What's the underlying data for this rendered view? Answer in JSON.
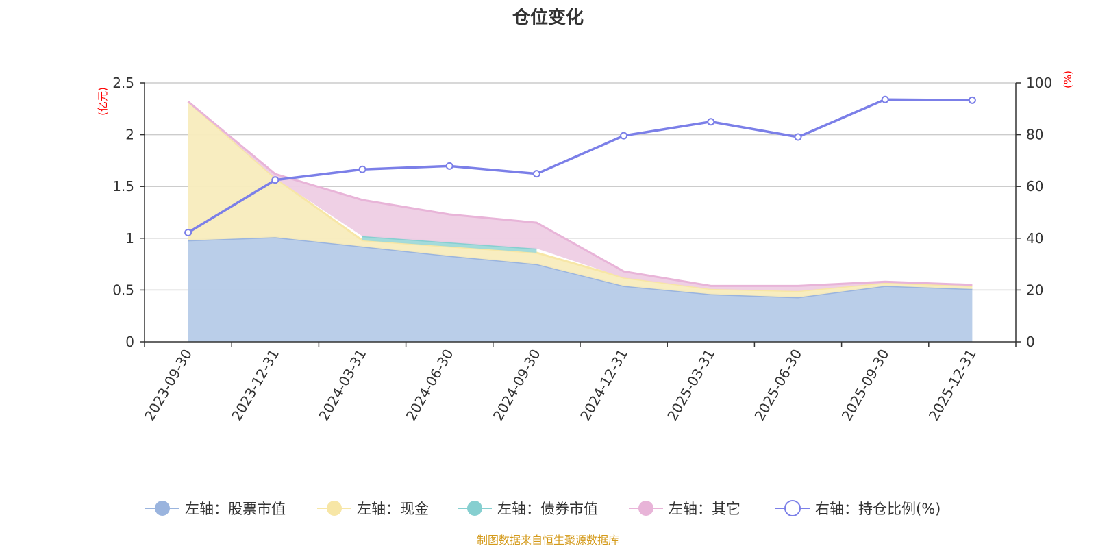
{
  "chart_data": {
    "type": "area",
    "title": "仓位变化",
    "categories": [
      "2023-09-30",
      "2023-12-31",
      "2024-03-31",
      "2024-06-30",
      "2024-09-30",
      "2024-12-31",
      "2025-03-31",
      "2025-06-30",
      "2025-09-30",
      "2025-12-31"
    ],
    "left_axis": {
      "unit": "(亿元)",
      "ylim": [
        0,
        2.5
      ],
      "ticks": [
        "0",
        "0.5",
        "1",
        "1.5",
        "2",
        "2.5"
      ],
      "tick_values": [
        0,
        0.5,
        1,
        1.5,
        2,
        2.5
      ]
    },
    "right_axis": {
      "unit": "(%)",
      "ylim": [
        0,
        100
      ],
      "ticks": [
        "0",
        "20",
        "40",
        "60",
        "80",
        "100"
      ],
      "tick_values": [
        0,
        20,
        40,
        60,
        80,
        100
      ]
    },
    "stacked_series": [
      {
        "name": "左轴：股票市值",
        "color": "#9ab4de",
        "fill": "#b6cbe8",
        "values": [
          0.98,
          1.01,
          0.92,
          0.83,
          0.75,
          0.54,
          0.46,
          0.43,
          0.54,
          0.51
        ]
      },
      {
        "name": "左轴：现金",
        "color": "#f7e6a6",
        "fill": "#f8ecbd",
        "values": [
          1.34,
          0.57,
          0.06,
          0.09,
          0.11,
          0.08,
          0.05,
          0.06,
          0.03,
          0.03
        ]
      },
      {
        "name": "左轴：债券市值",
        "color": "#86cfd0",
        "fill": "#9fd9d9",
        "values": [
          null,
          null,
          0.04,
          0.04,
          0.04,
          null,
          null,
          null,
          null,
          null
        ]
      },
      {
        "name": "左轴：其它",
        "color": "#e8b4d8",
        "fill": "#eecde4",
        "values": [
          0.0,
          0.04,
          0.35,
          0.27,
          0.25,
          0.06,
          0.03,
          0.05,
          0.01,
          0.01
        ]
      }
    ],
    "line_series": {
      "name": "右轴：持仓比例(%)",
      "color": "#7b7fe8",
      "values": [
        42.2,
        62.5,
        66.6,
        67.9,
        64.9,
        79.6,
        85.0,
        79.1,
        93.6,
        93.3
      ]
    },
    "legend_position": "bottom",
    "grid": true
  },
  "source_note": "制图数据来自恒生聚源数据库"
}
